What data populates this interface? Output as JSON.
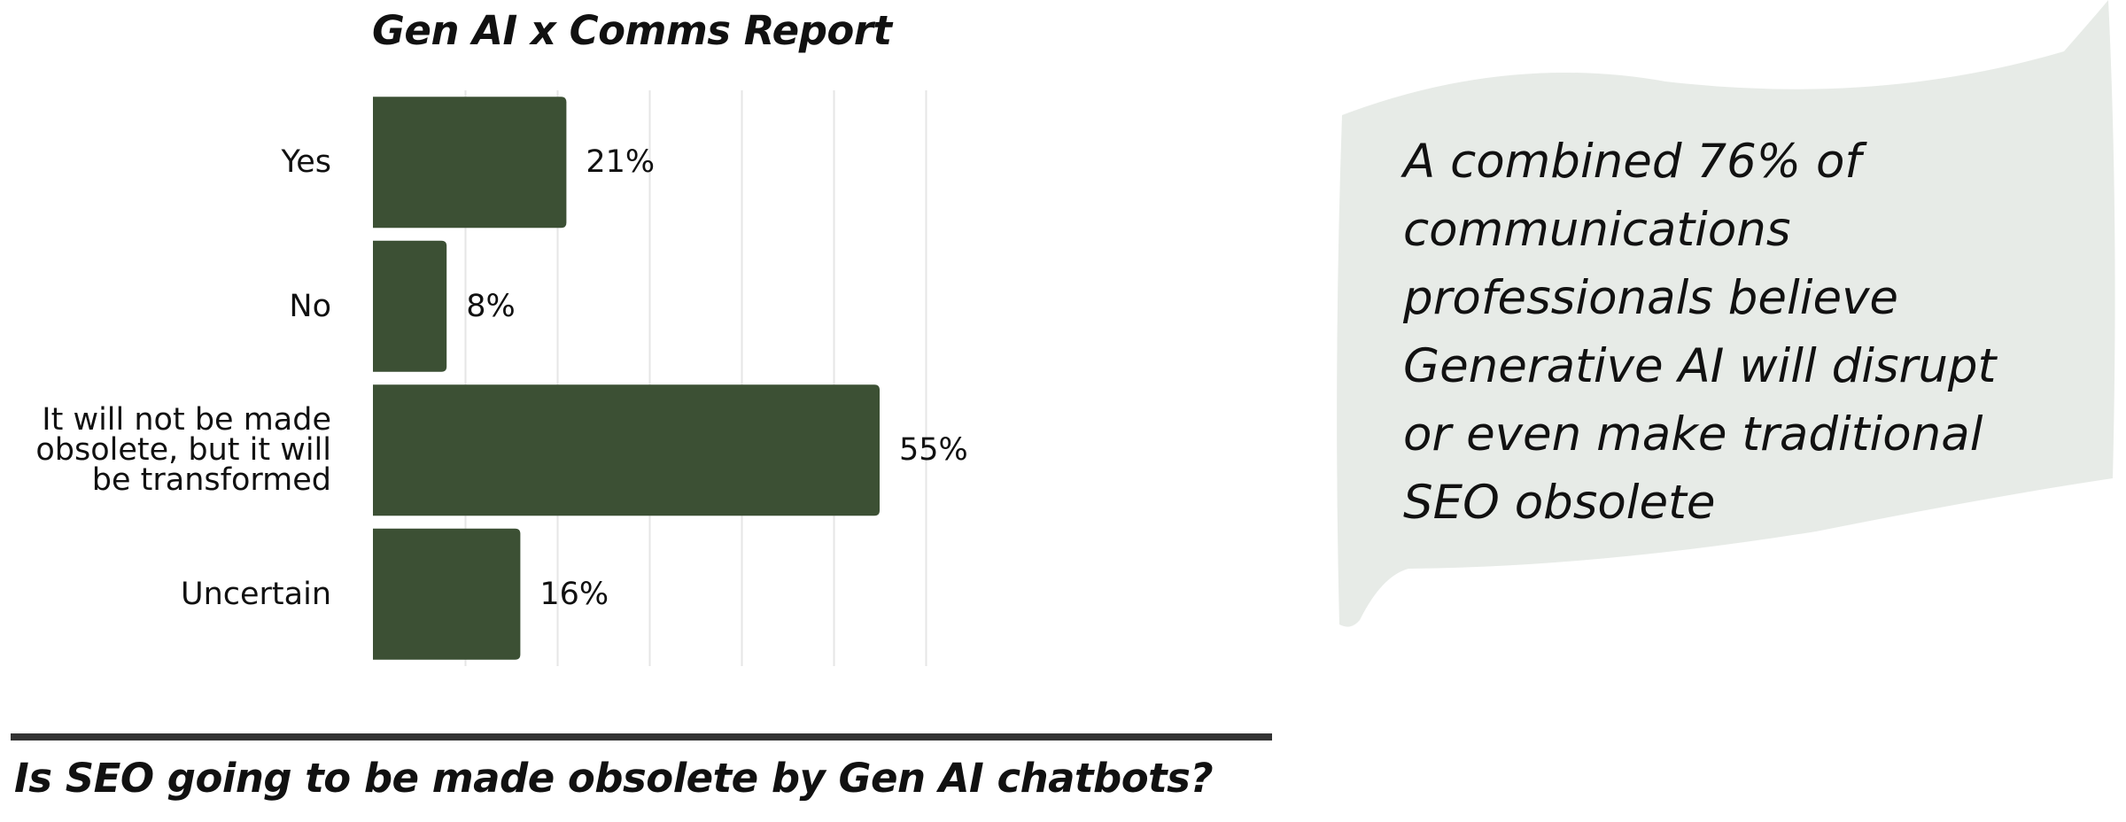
{
  "colors": {
    "bar": "#3c5034",
    "grid": "#e6e6e6",
    "bubble": "#e7ebe7",
    "rule": "#333333",
    "text": "#111111"
  },
  "chart_data": {
    "type": "bar",
    "orientation": "horizontal",
    "title": "Gen AI x Comms Report",
    "categories": [
      "Yes",
      "No",
      "It will not be made\nobsolete, but it will\nbe transformed",
      "Uncertain"
    ],
    "values": [
      21,
      8,
      55,
      16
    ],
    "value_labels": [
      "21%",
      "8%",
      "55%",
      "16%"
    ],
    "xlim": [
      0,
      60
    ],
    "grid": true,
    "legend": "none"
  },
  "callout": {
    "text": "A combined 76% of communications professionals believe Generative AI will disrupt or even make traditional SEO obsolete"
  },
  "footer": {
    "question": "Is SEO going to be made obsolete by Gen AI chatbots?"
  }
}
